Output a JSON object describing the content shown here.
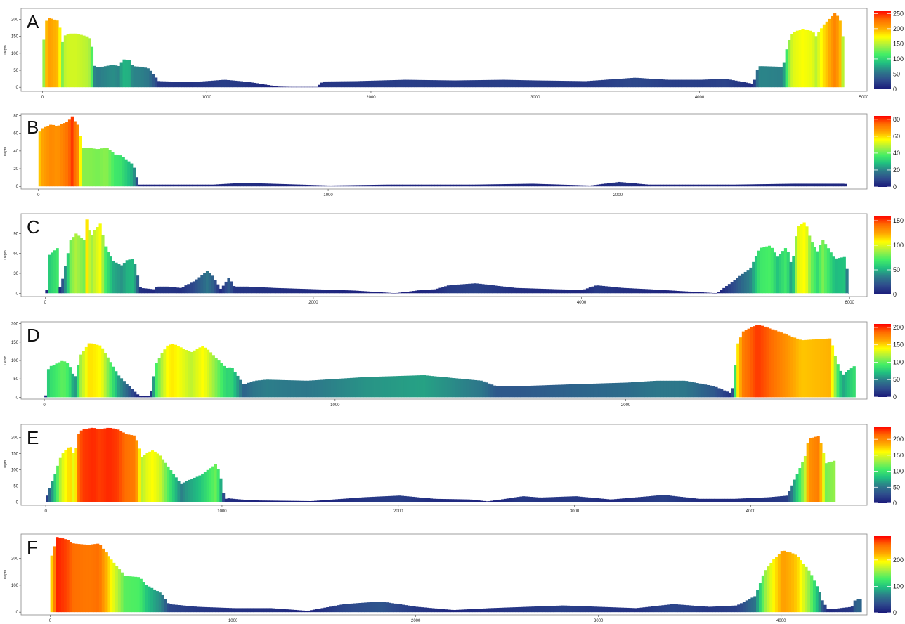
{
  "figure": {
    "colors": {
      "scale": [
        "#1a1a7a",
        "#2e4a8c",
        "#2d7a8a",
        "#20c080",
        "#44ee66",
        "#a8f040",
        "#ffff00",
        "#ffa500",
        "#ff6a00",
        "#ff0000"
      ],
      "frame": "#888888",
      "background": "#ffffff"
    }
  },
  "chart_data": [
    {
      "type": "area",
      "panel": "A",
      "ylabel": "Depth",
      "xlim": [
        -130,
        5020
      ],
      "ylim": [
        -12,
        232
      ],
      "xticks": [
        0,
        1000,
        2000,
        3000,
        4000,
        5000
      ],
      "yticks": [
        0,
        50,
        100,
        150,
        200
      ],
      "colorbar": {
        "max": 260,
        "ticks": [
          0,
          50,
          100,
          150,
          200,
          250
        ]
      },
      "x": [
        0,
        15,
        30,
        90,
        115,
        120,
        150,
        200,
        260,
        290,
        300,
        330,
        420,
        460,
        480,
        520,
        540,
        600,
        640,
        700,
        900,
        1100,
        1200,
        1300,
        1420,
        1500,
        1660,
        1700,
        1900,
        2200,
        2500,
        2800,
        3000,
        3300,
        3600,
        3800,
        4000,
        4150,
        4320,
        4350,
        4380,
        4500,
        4530,
        4560,
        4620,
        4680,
        4700,
        4750,
        4820,
        4860,
        4880
      ],
      "y": [
        140,
        195,
        205,
        195,
        130,
        150,
        158,
        158,
        150,
        140,
        65,
        58,
        66,
        62,
        82,
        80,
        62,
        60,
        55,
        18,
        15,
        22,
        18,
        12,
        2,
        1,
        1,
        17,
        18,
        22,
        20,
        22,
        20,
        18,
        28,
        22,
        22,
        25,
        10,
        62,
        62,
        60,
        130,
        162,
        172,
        165,
        150,
        185,
        220,
        185,
        0
      ]
    },
    {
      "type": "area",
      "panel": "B",
      "ylabel": "Depth",
      "xlim": [
        -60,
        2860
      ],
      "ylim": [
        -3,
        82
      ],
      "xticks": [
        0,
        1000,
        2000
      ],
      "yticks": [
        0,
        20,
        40,
        60,
        80
      ],
      "colorbar": {
        "max": 84,
        "ticks": [
          0,
          20,
          40,
          60,
          80
        ]
      },
      "x": [
        0,
        10,
        40,
        60,
        100,
        110,
        120,
        130,
        150,
        160,
        200,
        230,
        260,
        280,
        300,
        320,
        330,
        340,
        600,
        700,
        800,
        1000,
        1200,
        1500,
        1700,
        1900,
        2000,
        2100,
        2400,
        2600,
        2780,
        2790
      ],
      "y": [
        62,
        66,
        70,
        68,
        74,
        80,
        74,
        70,
        42,
        44,
        42,
        44,
        36,
        35,
        30,
        25,
        18,
        2,
        2,
        4,
        3,
        1,
        2,
        2,
        3,
        1,
        5,
        2,
        2,
        3,
        3,
        0
      ]
    },
    {
      "type": "area",
      "panel": "C",
      "ylabel": "Depth",
      "xlim": [
        -180,
        6130
      ],
      "ylim": [
        -5,
        120
      ],
      "xticks": [
        0,
        2000,
        4000,
        6000
      ],
      "yticks": [
        0,
        30,
        60,
        90
      ],
      "colorbar": {
        "max": 160,
        "ticks": [
          0,
          50,
          100,
          150
        ]
      },
      "x": [
        0,
        20,
        80,
        90,
        120,
        180,
        220,
        280,
        300,
        330,
        360,
        400,
        440,
        480,
        500,
        560,
        600,
        650,
        700,
        800,
        820,
        900,
        1000,
        1100,
        1200,
        1240,
        1300,
        1360,
        1400,
        1500,
        1700,
        2000,
        2300,
        2600,
        2800,
        2900,
        3000,
        3200,
        3500,
        3800,
        4000,
        4100,
        4300,
        4500,
        5000,
        5250,
        5320,
        5400,
        5450,
        5520,
        5560,
        5600,
        5660,
        5700,
        5760,
        5780,
        5880,
        5960,
        5990
      ],
      "y": [
        5,
        58,
        68,
        3,
        22,
        80,
        90,
        80,
        112,
        85,
        95,
        105,
        70,
        55,
        48,
        42,
        50,
        52,
        8,
        6,
        10,
        10,
        8,
        18,
        34,
        26,
        6,
        24,
        10,
        10,
        8,
        6,
        4,
        0,
        5,
        6,
        12,
        15,
        8,
        6,
        5,
        12,
        8,
        6,
        0,
        38,
        68,
        72,
        55,
        70,
        40,
        100,
        108,
        80,
        60,
        84,
        52,
        55,
        0
      ]
    },
    {
      "type": "area",
      "panel": "D",
      "ylabel": "Depth",
      "xlim": [
        -80,
        2830
      ],
      "ylim": [
        -5,
        205
      ],
      "xticks": [
        0,
        1000,
        2000
      ],
      "yticks": [
        0,
        50,
        100,
        150,
        200
      ],
      "colorbar": {
        "max": 210,
        "ticks": [
          0,
          50,
          100,
          150,
          200
        ]
      },
      "x": [
        0,
        10,
        60,
        80,
        100,
        120,
        150,
        190,
        220,
        250,
        300,
        320,
        330,
        360,
        380,
        400,
        420,
        440,
        480,
        500,
        540,
        560,
        620,
        640,
        680,
        720,
        760,
        900,
        1100,
        1300,
        1500,
        1550,
        1620,
        1800,
        2000,
        2100,
        2200,
        2300,
        2360,
        2380,
        2400,
        2450,
        2500,
        2600,
        2700,
        2720,
        2740,
        2790
      ],
      "y": [
        5,
        82,
        100,
        90,
        50,
        115,
        148,
        140,
        100,
        60,
        20,
        5,
        3,
        5,
        92,
        120,
        142,
        145,
        130,
        122,
        140,
        128,
        80,
        82,
        35,
        45,
        48,
        45,
        55,
        60,
        45,
        30,
        30,
        35,
        40,
        45,
        45,
        30,
        10,
        145,
        180,
        198,
        185,
        155,
        160,
        100,
        60,
        90
      ]
    },
    {
      "type": "area",
      "panel": "E",
      "ylabel": "Depth",
      "xlim": [
        -140,
        4660
      ],
      "ylim": [
        -10,
        240
      ],
      "xticks": [
        0,
        1000,
        2000,
        3000,
        4000
      ],
      "yticks": [
        0,
        50,
        100,
        150,
        200
      ],
      "colorbar": {
        "max": 240,
        "ticks": [
          0,
          50,
          100,
          150,
          200
        ]
      },
      "x": [
        0,
        40,
        80,
        130,
        160,
        170,
        200,
        260,
        300,
        350,
        400,
        450,
        500,
        540,
        560,
        600,
        640,
        700,
        760,
        790,
        860,
        940,
        960,
        980,
        1000,
        1010,
        1020,
        1100,
        1200,
        1500,
        1800,
        2000,
        2200,
        2400,
        2500,
        2700,
        2800,
        3000,
        3200,
        3500,
        3700,
        3900,
        4100,
        4200,
        4250,
        4300,
        4320,
        4380,
        4420,
        4480
      ],
      "y": [
        20,
        80,
        145,
        175,
        140,
        205,
        225,
        230,
        225,
        230,
        225,
        210,
        205,
        135,
        150,
        160,
        145,
        100,
        55,
        65,
        80,
        110,
        118,
        90,
        30,
        8,
        12,
        8,
        5,
        3,
        15,
        20,
        10,
        8,
        2,
        18,
        14,
        18,
        8,
        22,
        10,
        10,
        15,
        20,
        80,
        140,
        195,
        205,
        120,
        130
      ]
    },
    {
      "type": "area",
      "panel": "F",
      "ylabel": "Depth",
      "xlim": [
        -160,
        4470
      ],
      "ylim": [
        -10,
        290
      ],
      "xticks": [
        0,
        1000,
        2000,
        3000,
        4000
      ],
      "yticks": [
        0,
        100,
        200
      ],
      "colorbar": {
        "max": 290,
        "ticks": [
          0,
          100,
          200
        ]
      },
      "x": [
        0,
        30,
        80,
        120,
        200,
        260,
        320,
        400,
        480,
        520,
        600,
        640,
        800,
        1000,
        1200,
        1400,
        1600,
        1700,
        1800,
        2000,
        2200,
        2400,
        2600,
        2800,
        3000,
        3200,
        3400,
        3600,
        3750,
        3850,
        3900,
        3950,
        4000,
        4050,
        4080,
        4150,
        4200,
        4220,
        4250,
        4380,
        4400,
        4440
      ],
      "y": [
        210,
        280,
        270,
        255,
        250,
        255,
        200,
        135,
        130,
        100,
        70,
        30,
        20,
        15,
        15,
        5,
        30,
        35,
        40,
        20,
        8,
        15,
        20,
        25,
        20,
        15,
        30,
        20,
        25,
        60,
        150,
        195,
        230,
        220,
        210,
        150,
        80,
        40,
        10,
        20,
        50,
        50
      ]
    }
  ]
}
